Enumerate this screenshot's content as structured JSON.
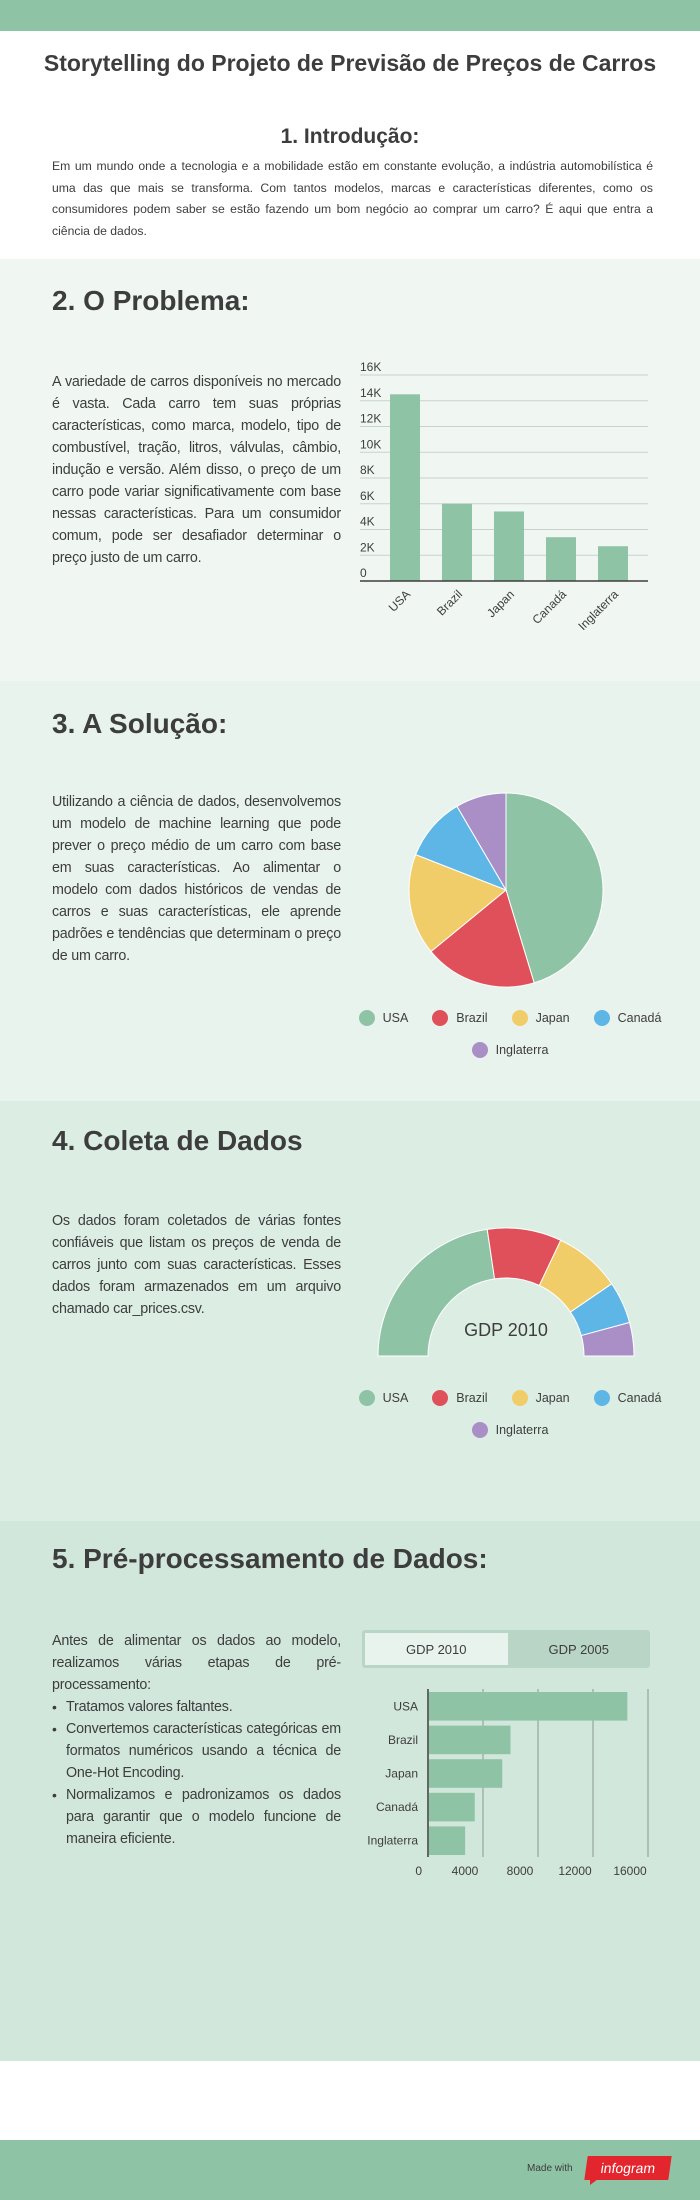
{
  "header": {
    "title": "Storytelling do Projeto de Previsão de Preços de Carros"
  },
  "intro": {
    "heading": "1. Introdução:",
    "text": "Em um mundo onde a tecnologia e a mobilidade estão em constante evolução, a indústria automobilística é uma das que mais se transforma. Com tantos modelos, marcas e características diferentes, como os consumidores podem saber se estão fazendo um bom negócio ao comprar um carro? É aqui que entra a ciência de dados."
  },
  "problem": {
    "title": "2. O Problema:",
    "text": "A variedade de carros disponíveis no mercado é vasta. Cada carro tem suas próprias características, como marca, modelo, tipo de combustível, tração, litros, válvulas, câmbio, indução e versão. Além disso, o preço de um carro pode variar significativamente com base nessas características. Para um consumidor comum, pode ser desafiador determinar o preço justo de um carro."
  },
  "solution": {
    "title": "3. A Solução:",
    "text": "Utilizando a ciência de dados, desenvolvemos um modelo de machine learning que pode prever o preço médio de um carro com base em suas características. Ao alimentar o modelo com dados históricos de vendas de carros e suas características, ele aprende padrões e tendências que determinam o preço de um carro."
  },
  "collection": {
    "title": "4. Coleta de Dados",
    "text": "Os dados foram coletados de várias fontes confiáveis que listam os preços de venda de carros junto com suas características. Esses dados foram armazenados em um arquivo chamado car_prices.csv."
  },
  "preprocessing": {
    "title": "5. Pré-processamento de Dados:",
    "intro": "Antes de alimentar os dados ao modelo, realizamos várias etapas de pré-processamento:",
    "bullets": [
      "Tratamos valores faltantes.",
      "Convertemos características categóricas em formatos numéricos usando a técnica de One-Hot Encoding.",
      "Normalizamos e padronizamos os dados para garantir que o modelo funcione de maneira eficiente."
    ],
    "tabs": [
      "GDP 2010",
      "GDP 2005"
    ]
  },
  "legend": [
    "USA",
    "Brazil",
    "Japan",
    "Canadá",
    "Inglaterra"
  ],
  "colors": {
    "green": "#8fc3a5",
    "red": "#e0505a",
    "yellow": "#f1cd6a",
    "blue": "#5db6e6",
    "purple": "#a98fc6",
    "brand_red": "#e3262d"
  },
  "footer": {
    "made_with": "Made with",
    "brand": "infogram"
  },
  "chart_data": [
    {
      "type": "bar",
      "categories": [
        "USA",
        "Brazil",
        "Japan",
        "Canadá",
        "Inglaterra"
      ],
      "values": [
        14500,
        6000,
        5400,
        3400,
        2700
      ],
      "yticks": [
        "0",
        "2K",
        "4K",
        "6K",
        "8K",
        "10K",
        "12K",
        "14K",
        "16K"
      ],
      "ylim": [
        0,
        16000
      ]
    },
    {
      "type": "pie",
      "categories": [
        "USA",
        "Brazil",
        "Japan",
        "Canadá",
        "Inglaterra"
      ],
      "values": [
        14500,
        6000,
        5400,
        3400,
        2700
      ]
    },
    {
      "type": "pie",
      "subtype": "semi-donut",
      "title": "GDP 2010",
      "categories": [
        "USA",
        "Brazil",
        "Japan",
        "Canadá",
        "Inglaterra"
      ],
      "values": [
        14500,
        6000,
        5400,
        3400,
        2700
      ]
    },
    {
      "type": "bar",
      "orientation": "horizontal",
      "categories": [
        "USA",
        "Brazil",
        "Japan",
        "Canadá",
        "Inglaterra"
      ],
      "values": [
        14500,
        6000,
        5400,
        3400,
        2700
      ],
      "xticks": [
        "0",
        "4000",
        "8000",
        "12000",
        "16000"
      ],
      "xlim": [
        0,
        16000
      ]
    }
  ]
}
